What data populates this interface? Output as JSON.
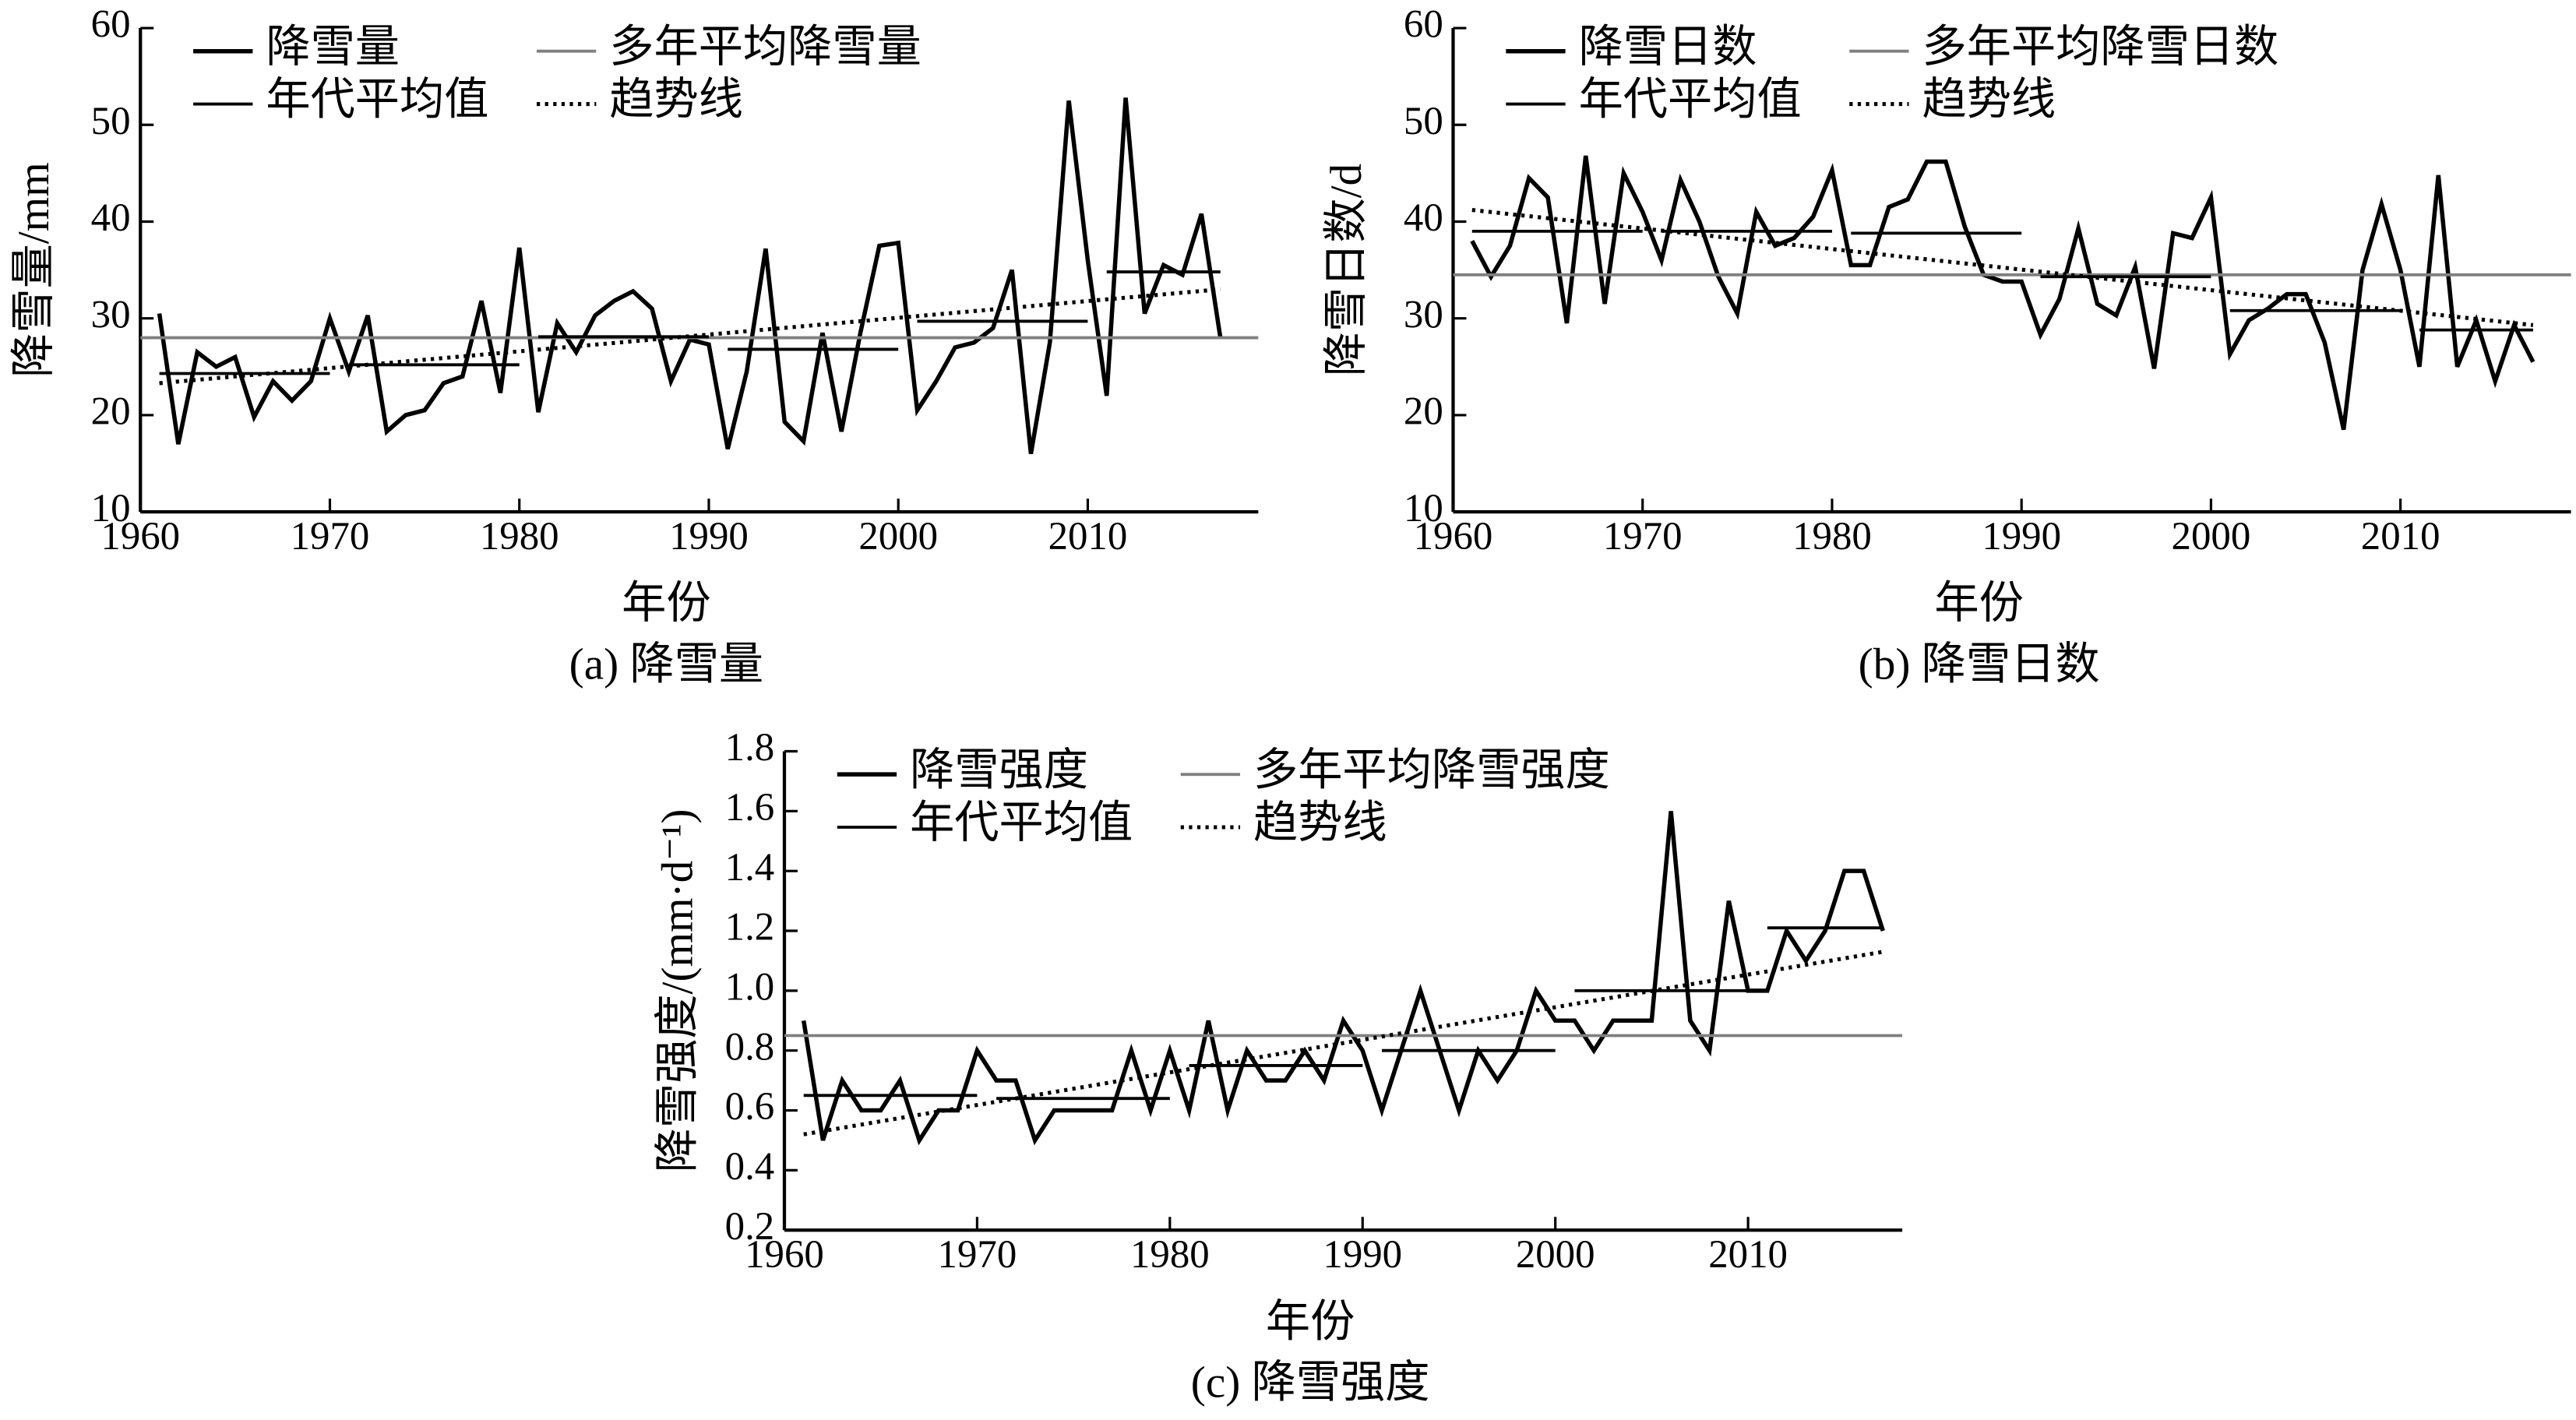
{
  "chart_data": [
    {
      "type": "line",
      "caption": "(a) 降雪量",
      "xlabel": "年份",
      "ylabel": "降雪量/mm",
      "xlim": [
        1960,
        2019
      ],
      "xticks": [
        1960,
        1970,
        1980,
        1990,
        2000,
        2010
      ],
      "ylim": [
        10,
        60
      ],
      "yticks": [
        10,
        20,
        30,
        40,
        50,
        60
      ],
      "x": [
        1961,
        1962,
        1963,
        1964,
        1965,
        1966,
        1967,
        1968,
        1969,
        1970,
        1971,
        1972,
        1973,
        1974,
        1975,
        1976,
        1977,
        1978,
        1979,
        1980,
        1981,
        1982,
        1983,
        1984,
        1985,
        1986,
        1987,
        1988,
        1989,
        1990,
        1991,
        1992,
        1993,
        1994,
        1995,
        1996,
        1997,
        1998,
        1999,
        2000,
        2001,
        2002,
        2003,
        2004,
        2005,
        2006,
        2007,
        2008,
        2009,
        2010,
        2011,
        2012,
        2013,
        2014,
        2015,
        2016,
        2017
      ],
      "series": [
        {
          "name": "降雪量",
          "kind": "line",
          "color": "#000000",
          "values": [
            30.5,
            17,
            26.5,
            25,
            26,
            19.8,
            23.5,
            21.5,
            23.5,
            30,
            24.5,
            30.3,
            18.3,
            20,
            20.5,
            23.3,
            24,
            31.8,
            22.3,
            37.3,
            20.3,
            29.5,
            26.5,
            30.3,
            31.8,
            32.8,
            31,
            23.5,
            27.8,
            27.3,
            16.5,
            24.5,
            37.2,
            19.3,
            17.3,
            28.5,
            18.3,
            28.5,
            37.5,
            37.8,
            20.5,
            23.5,
            27,
            27.5,
            29,
            35,
            16,
            27.5,
            52.5,
            36,
            22,
            52.8,
            30.5,
            35.5,
            34.5,
            40.8,
            28
          ]
        },
        {
          "name": "多年平均降雪量",
          "kind": "mean",
          "color": "#808080",
          "value": 28
        },
        {
          "name": "年代平均值",
          "kind": "decade",
          "color": "#000000",
          "segments": [
            {
              "x": [
                1961,
                1970
              ],
              "value": 24.3
            },
            {
              "x": [
                1971,
                1980
              ],
              "value": 25.2
            },
            {
              "x": [
                1981,
                1990
              ],
              "value": 28.1
            },
            {
              "x": [
                1991,
                2000
              ],
              "value": 26.8
            },
            {
              "x": [
                2001,
                2010
              ],
              "value": 29.7
            },
            {
              "x": [
                2011,
                2017
              ],
              "value": 34.8
            }
          ]
        },
        {
          "name": "趋势线",
          "kind": "trend",
          "color": "#000000",
          "x": [
            1961,
            2017
          ],
          "values": [
            23.3,
            33
          ]
        }
      ]
    },
    {
      "type": "line",
      "caption": "(b) 降雪日数",
      "xlabel": "年份",
      "ylabel": "降雪日数/d",
      "xlim": [
        1960,
        2019
      ],
      "xticks": [
        1960,
        1970,
        1980,
        1990,
        2000,
        2010
      ],
      "ylim": [
        10,
        60
      ],
      "yticks": [
        10,
        20,
        30,
        40,
        50,
        60
      ],
      "x": [
        1961,
        1962,
        1963,
        1964,
        1965,
        1966,
        1967,
        1968,
        1969,
        1970,
        1971,
        1972,
        1973,
        1974,
        1975,
        1976,
        1977,
        1978,
        1979,
        1980,
        1981,
        1982,
        1983,
        1984,
        1985,
        1986,
        1987,
        1988,
        1989,
        1990,
        1991,
        1992,
        1993,
        1994,
        1995,
        1996,
        1997,
        1998,
        1999,
        2000,
        2001,
        2002,
        2003,
        2004,
        2005,
        2006,
        2007,
        2008,
        2009,
        2010,
        2011,
        2012,
        2013,
        2014,
        2015,
        2016,
        2017
      ],
      "series": [
        {
          "name": "降雪日数",
          "kind": "line",
          "color": "#000000",
          "values": [
            38,
            34.3,
            37.5,
            44.5,
            42.5,
            29.5,
            46.8,
            31.5,
            45,
            41,
            36,
            44.3,
            40,
            34.3,
            30.5,
            41,
            37.5,
            38.3,
            40.5,
            45.3,
            35.5,
            35.5,
            41.5,
            42.3,
            46.2,
            46.2,
            39.5,
            34.5,
            33.8,
            33.8,
            28.3,
            32,
            39.3,
            31.5,
            30.3,
            35.3,
            24.8,
            38.8,
            38.3,
            42.5,
            26.3,
            29.8,
            31,
            32.5,
            32.5,
            27.5,
            18.5,
            35,
            41.8,
            35,
            25,
            44.8,
            25,
            29.8,
            23.5,
            29.3,
            25.5
          ]
        },
        {
          "name": "多年平均降雪日数",
          "kind": "mean",
          "color": "#808080",
          "value": 34.5
        },
        {
          "name": "年代平均值",
          "kind": "decade",
          "color": "#000000",
          "segments": [
            {
              "x": [
                1961,
                1970
              ],
              "value": 39
            },
            {
              "x": [
                1971,
                1980
              ],
              "value": 39
            },
            {
              "x": [
                1981,
                1990
              ],
              "value": 38.8
            },
            {
              "x": [
                1991,
                2000
              ],
              "value": 34.3
            },
            {
              "x": [
                2001,
                2010
              ],
              "value": 30.8
            },
            {
              "x": [
                2011,
                2017
              ],
              "value": 28.8
            }
          ]
        },
        {
          "name": "趋势线",
          "kind": "trend",
          "color": "#000000",
          "x": [
            1961,
            2017
          ],
          "values": [
            41.2,
            29.3
          ]
        }
      ]
    },
    {
      "type": "line",
      "caption": "(c) 降雪强度",
      "xlabel": "年份",
      "ylabel": "降雪强度/(mm·d⁻¹)",
      "xlim": [
        1960,
        2018
      ],
      "xticks": [
        1960,
        1970,
        1980,
        1990,
        2000,
        2010
      ],
      "ylim": [
        0.2,
        1.8
      ],
      "yticks": [
        0.2,
        0.4,
        0.6,
        0.8,
        {
          "value": 1,
          "label": "1.0"
        },
        1.2,
        1.4,
        1.6,
        1.8
      ],
      "x": [
        1961,
        1962,
        1963,
        1964,
        1965,
        1966,
        1967,
        1968,
        1969,
        1970,
        1971,
        1972,
        1973,
        1974,
        1975,
        1976,
        1977,
        1978,
        1979,
        1980,
        1981,
        1982,
        1983,
        1984,
        1985,
        1986,
        1987,
        1988,
        1989,
        1990,
        1991,
        1992,
        1993,
        1994,
        1995,
        1996,
        1997,
        1998,
        1999,
        2000,
        2001,
        2002,
        2003,
        2004,
        2005,
        2006,
        2007,
        2008,
        2009,
        2010,
        2011,
        2012,
        2013,
        2014,
        2015,
        2016,
        2017
      ],
      "series": [
        {
          "name": "降雪强度",
          "kind": "line",
          "color": "#000000",
          "values": [
            0.9,
            0.5,
            0.7,
            0.6,
            0.6,
            0.7,
            0.5,
            0.6,
            0.6,
            0.8,
            0.7,
            0.7,
            0.5,
            0.6,
            0.6,
            0.6,
            0.6,
            0.8,
            0.6,
            0.8,
            0.6,
            0.9,
            0.6,
            0.8,
            0.7,
            0.7,
            0.8,
            0.7,
            0.9,
            0.8,
            0.6,
            0.8,
            1.0,
            0.8,
            0.6,
            0.8,
            0.7,
            0.8,
            1.0,
            0.9,
            0.9,
            0.8,
            0.9,
            0.9,
            0.9,
            1.6,
            0.9,
            0.8,
            1.3,
            1.0,
            1.0,
            1.2,
            1.1,
            1.2,
            1.4,
            1.4,
            1.2
          ]
        },
        {
          "name": "多年平均降雪强度",
          "kind": "mean",
          "color": "#808080",
          "value": 0.85
        },
        {
          "name": "年代平均值",
          "kind": "decade",
          "color": "#000000",
          "segments": [
            {
              "x": [
                1961,
                1970
              ],
              "value": 0.65
            },
            {
              "x": [
                1971,
                1980
              ],
              "value": 0.64
            },
            {
              "x": [
                1981,
                1990
              ],
              "value": 0.75
            },
            {
              "x": [
                1991,
                2000
              ],
              "value": 0.8
            },
            {
              "x": [
                2001,
                2010
              ],
              "value": 1.0
            },
            {
              "x": [
                2011,
                2017
              ],
              "value": 1.21
            }
          ]
        },
        {
          "name": "趋势线",
          "kind": "trend",
          "color": "#000000",
          "x": [
            1961,
            2017
          ],
          "values": [
            0.52,
            1.13
          ]
        }
      ]
    }
  ]
}
